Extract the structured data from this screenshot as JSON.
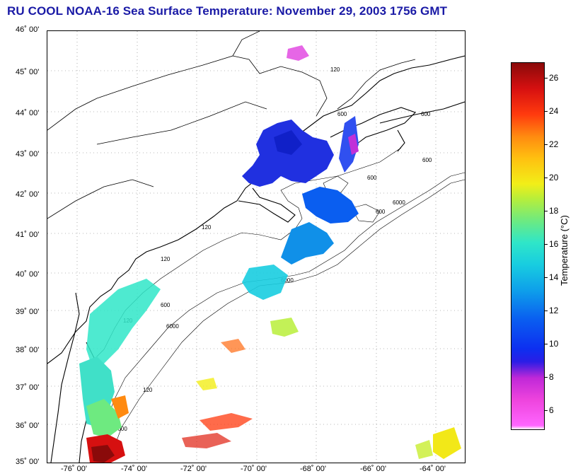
{
  "title": "RU COOL  NOAA-16  Sea Surface Temperature:  November 29, 2003 1756 GMT",
  "colorbar": {
    "label": "Temperature (°C)",
    "ticks": [
      "26",
      "24",
      "22",
      "20",
      "18",
      "16",
      "14",
      "12",
      "10",
      "8",
      "6"
    ],
    "range": [
      5,
      27
    ]
  },
  "map": {
    "lat_labels": [
      "46˚ 00'",
      "45˚ 00'",
      "44˚ 00'",
      "43˚ 00'",
      "42˚ 00'",
      "41˚ 00'",
      "40˚ 00'",
      "39˚ 00'",
      "38˚ 00'",
      "37˚ 00'",
      "36˚ 00'",
      "35˚ 00'"
    ],
    "lon_labels": [
      "-76˚ 00'",
      "-74˚ 00'",
      "-72˚ 00'",
      "-70˚ 00'",
      "-68˚ 00'",
      "-66˚ 00'",
      "-64˚ 00'"
    ],
    "isobath_labels": [
      "120",
      "120",
      "120",
      "120",
      "600",
      "600",
      "600",
      "600",
      "600",
      "6000",
      "6000",
      "6000",
      "120",
      "600",
      "6000"
    ],
    "extent": {
      "lon": [
        -77,
        -63
      ],
      "lat": [
        35,
        46
      ]
    },
    "grid": "dotted",
    "colors": {
      "coast": "#000000",
      "title": "#1a1aa6"
    }
  }
}
